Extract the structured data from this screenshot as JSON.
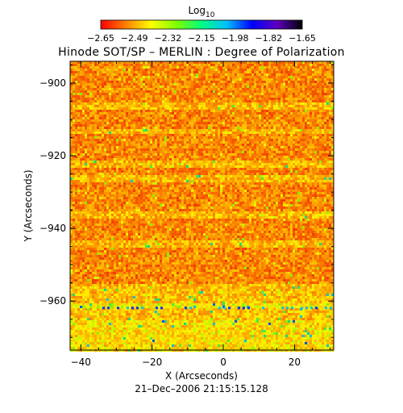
{
  "chart_data": {
    "type": "heatmap",
    "title": "Hinode SOT/SP – MERLIN : Degree of Polarization",
    "xlabel": "X (Arcseconds)",
    "ylabel": "Y (Arcseconds)",
    "xlim": [
      -43,
      31
    ],
    "ylim": [
      -973.5,
      -894
    ],
    "x_ticks": [
      -40,
      -20,
      0,
      20
    ],
    "x_tick_labels": [
      "−40",
      "−20",
      "0",
      "20"
    ],
    "y_ticks": [
      -900,
      -920,
      -940,
      -960
    ],
    "y_tick_labels": [
      "−900",
      "−920",
      "−940",
      "−960"
    ],
    "colorbar": {
      "label_base": "Log",
      "label_sub": "10",
      "range": [
        -2.65,
        -1.65
      ],
      "tick_labels": [
        "−2.65",
        "−2.49",
        "−2.32",
        "−2.15",
        "−1.98",
        "−1.82",
        "−1.65"
      ],
      "colors": [
        "#ff0000",
        "#ff8000",
        "#ffff00",
        "#80ff00",
        "#00ff80",
        "#00c0ff",
        "#0000ff",
        "#6000c0",
        "#000000"
      ]
    },
    "timestamp": "21–Dec–2006 21:15:15.128"
  }
}
